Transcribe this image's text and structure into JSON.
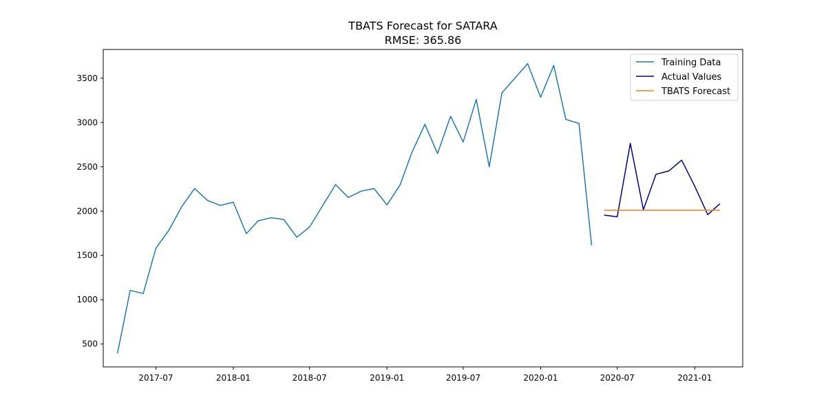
{
  "chart_data": {
    "type": "line",
    "title": "TBATS Forecast for SATARA",
    "subtitle": "RMSE: 365.86",
    "xlabel": "",
    "ylabel": "",
    "grid": false,
    "legend_placement": "top-right",
    "xlim": [
      "2017-02-26",
      "2021-04-25"
    ],
    "ylim": [
      242,
      3824
    ],
    "x_ticks": [
      "2017-07",
      "2018-01",
      "2018-07",
      "2019-01",
      "2019-07",
      "2020-01",
      "2020-07",
      "2021-01"
    ],
    "y_ticks": [
      500,
      1000,
      1500,
      2000,
      2500,
      3000,
      3500
    ],
    "series": [
      {
        "name": "Training Data",
        "color": "#1f77b4",
        "x": [
          "2017-04",
          "2017-05",
          "2017-06",
          "2017-07",
          "2017-08",
          "2017-09",
          "2017-10",
          "2017-11",
          "2017-12",
          "2018-01",
          "2018-02",
          "2018-03",
          "2018-04",
          "2018-05",
          "2018-06",
          "2018-07",
          "2018-08",
          "2018-09",
          "2018-10",
          "2018-11",
          "2018-12",
          "2019-01",
          "2019-02",
          "2019-03",
          "2019-04",
          "2019-05",
          "2019-06",
          "2019-07",
          "2019-08",
          "2019-09",
          "2019-10",
          "2019-11",
          "2019-12",
          "2020-01",
          "2020-02",
          "2020-03",
          "2020-04",
          "2020-05"
        ],
        "values": [
          400,
          1105,
          1070,
          1580,
          1785,
          2055,
          2255,
          2120,
          2065,
          2100,
          1745,
          1890,
          1925,
          1905,
          1705,
          1820,
          2060,
          2300,
          2155,
          2225,
          2255,
          2070,
          2295,
          2660,
          2980,
          2650,
          3070,
          2780,
          3260,
          2500,
          3335,
          3500,
          3665,
          3285,
          3645,
          3035,
          2990,
          1620
        ]
      },
      {
        "name": "Actual Values",
        "color": "#000080",
        "x": [
          "2020-06",
          "2020-07",
          "2020-08",
          "2020-09",
          "2020-10",
          "2020-11",
          "2020-12",
          "2021-01",
          "2021-02",
          "2021-03"
        ],
        "values": [
          1955,
          1935,
          2765,
          2015,
          2415,
          2455,
          2575,
          2280,
          1960,
          2080
        ]
      },
      {
        "name": "TBATS Forecast",
        "color": "#ff7f0e",
        "x": [
          "2020-06",
          "2020-07",
          "2020-08",
          "2020-09",
          "2020-10",
          "2020-11",
          "2020-12",
          "2021-01",
          "2021-02",
          "2021-03"
        ],
        "values": [
          2010,
          2010,
          2010,
          2010,
          2010,
          2010,
          2010,
          2010,
          2010,
          2010
        ]
      }
    ]
  }
}
